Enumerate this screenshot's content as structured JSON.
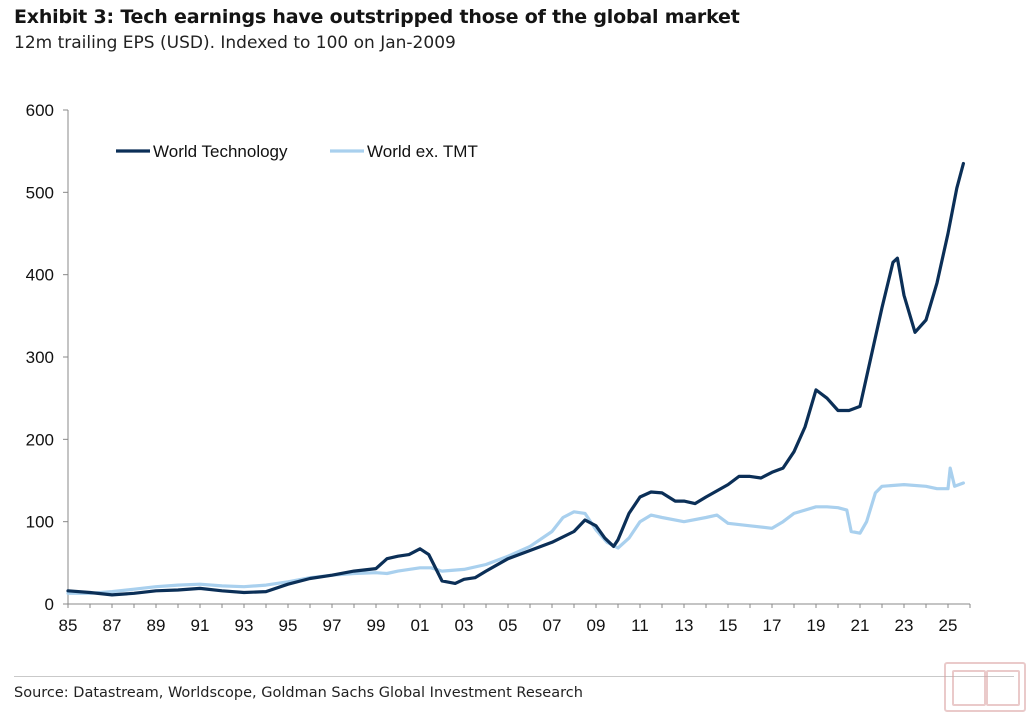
{
  "chart_data": {
    "type": "line",
    "title": "Exhibit 3: Tech earnings have outstripped those of the global market",
    "subtitle": "12m trailing EPS (USD). Indexed to 100 on Jan-2009",
    "xlabel": "",
    "ylabel": "",
    "xlim": [
      1985,
      2026
    ],
    "ylim": [
      0,
      600
    ],
    "yticks": [
      0,
      100,
      200,
      300,
      400,
      500,
      600
    ],
    "xtick_labels": [
      "85",
      "87",
      "89",
      "91",
      "93",
      "95",
      "97",
      "99",
      "01",
      "03",
      "05",
      "07",
      "09",
      "11",
      "13",
      "15",
      "17",
      "19",
      "21",
      "23",
      "25"
    ],
    "xtick_values": [
      1985,
      1987,
      1989,
      1991,
      1993,
      1995,
      1997,
      1999,
      2001,
      2003,
      2005,
      2007,
      2009,
      2011,
      2013,
      2015,
      2017,
      2019,
      2021,
      2023,
      2025
    ],
    "grid": false,
    "legend_position": "top-left",
    "series": [
      {
        "name": "World Technology",
        "color": "#0b2f57",
        "points": [
          [
            1985,
            16
          ],
          [
            1986,
            14
          ],
          [
            1987,
            11
          ],
          [
            1988,
            13
          ],
          [
            1989,
            16
          ],
          [
            1990,
            17
          ],
          [
            1991,
            19
          ],
          [
            1992,
            16
          ],
          [
            1993,
            14
          ],
          [
            1994,
            15
          ],
          [
            1995,
            24
          ],
          [
            1996,
            31
          ],
          [
            1997,
            35
          ],
          [
            1998,
            40
          ],
          [
            1999,
            43
          ],
          [
            1999.5,
            55
          ],
          [
            2000,
            58
          ],
          [
            2000.5,
            60
          ],
          [
            2001,
            67
          ],
          [
            2001.4,
            60
          ],
          [
            2002,
            28
          ],
          [
            2002.6,
            25
          ],
          [
            2003,
            30
          ],
          [
            2003.5,
            32
          ],
          [
            2004,
            40
          ],
          [
            2005,
            55
          ],
          [
            2006,
            65
          ],
          [
            2007,
            75
          ],
          [
            2008,
            88
          ],
          [
            2008.5,
            102
          ],
          [
            2009,
            95
          ],
          [
            2009.4,
            80
          ],
          [
            2009.8,
            70
          ],
          [
            2010,
            78
          ],
          [
            2010.5,
            110
          ],
          [
            2011,
            130
          ],
          [
            2011.5,
            136
          ],
          [
            2012,
            135
          ],
          [
            2012.6,
            125
          ],
          [
            2013,
            125
          ],
          [
            2013.5,
            122
          ],
          [
            2014,
            130
          ],
          [
            2015,
            145
          ],
          [
            2015.5,
            155
          ],
          [
            2016,
            155
          ],
          [
            2016.5,
            153
          ],
          [
            2017,
            160
          ],
          [
            2017.5,
            165
          ],
          [
            2018,
            185
          ],
          [
            2018.5,
            215
          ],
          [
            2019,
            260
          ],
          [
            2019.5,
            250
          ],
          [
            2020,
            235
          ],
          [
            2020.5,
            235
          ],
          [
            2021,
            240
          ],
          [
            2021.5,
            300
          ],
          [
            2022,
            360
          ],
          [
            2022.5,
            415
          ],
          [
            2022.7,
            420
          ],
          [
            2023,
            375
          ],
          [
            2023.5,
            330
          ],
          [
            2024,
            345
          ],
          [
            2024.5,
            390
          ],
          [
            2025,
            450
          ],
          [
            2025.4,
            505
          ],
          [
            2025.7,
            535
          ]
        ]
      },
      {
        "name": "World ex. TMT",
        "color": "#a9d0ee",
        "points": [
          [
            1985,
            13
          ],
          [
            1986,
            13
          ],
          [
            1987,
            15
          ],
          [
            1988,
            18
          ],
          [
            1989,
            21
          ],
          [
            1990,
            23
          ],
          [
            1991,
            24
          ],
          [
            1992,
            22
          ],
          [
            1993,
            21
          ],
          [
            1994,
            23
          ],
          [
            1995,
            27
          ],
          [
            1996,
            32
          ],
          [
            1997,
            35
          ],
          [
            1998,
            37
          ],
          [
            1999,
            38
          ],
          [
            1999.5,
            37
          ],
          [
            2000,
            40
          ],
          [
            2001,
            44
          ],
          [
            2001.5,
            44
          ],
          [
            2002,
            40
          ],
          [
            2003,
            42
          ],
          [
            2004,
            48
          ],
          [
            2005,
            58
          ],
          [
            2006,
            70
          ],
          [
            2007,
            88
          ],
          [
            2007.5,
            105
          ],
          [
            2008,
            112
          ],
          [
            2008.5,
            110
          ],
          [
            2009,
            90
          ],
          [
            2009.5,
            75
          ],
          [
            2010,
            68
          ],
          [
            2010.5,
            80
          ],
          [
            2011,
            100
          ],
          [
            2011.5,
            108
          ],
          [
            2012,
            105
          ],
          [
            2013,
            100
          ],
          [
            2014,
            105
          ],
          [
            2014.5,
            108
          ],
          [
            2015,
            98
          ],
          [
            2016,
            95
          ],
          [
            2017,
            92
          ],
          [
            2017.5,
            100
          ],
          [
            2018,
            110
          ],
          [
            2019,
            118
          ],
          [
            2019.5,
            118
          ],
          [
            2020,
            117
          ],
          [
            2020.4,
            114
          ],
          [
            2020.6,
            88
          ],
          [
            2021,
            86
          ],
          [
            2021.3,
            100
          ],
          [
            2021.7,
            135
          ],
          [
            2022,
            143
          ],
          [
            2023,
            145
          ],
          [
            2024,
            143
          ],
          [
            2024.5,
            140
          ],
          [
            2025,
            140
          ],
          [
            2025.1,
            165
          ],
          [
            2025.3,
            143
          ],
          [
            2025.7,
            147
          ]
        ]
      }
    ]
  },
  "footer": {
    "source": "Source: Datastream, Worldscope, Goldman Sachs Global Investment Research"
  }
}
